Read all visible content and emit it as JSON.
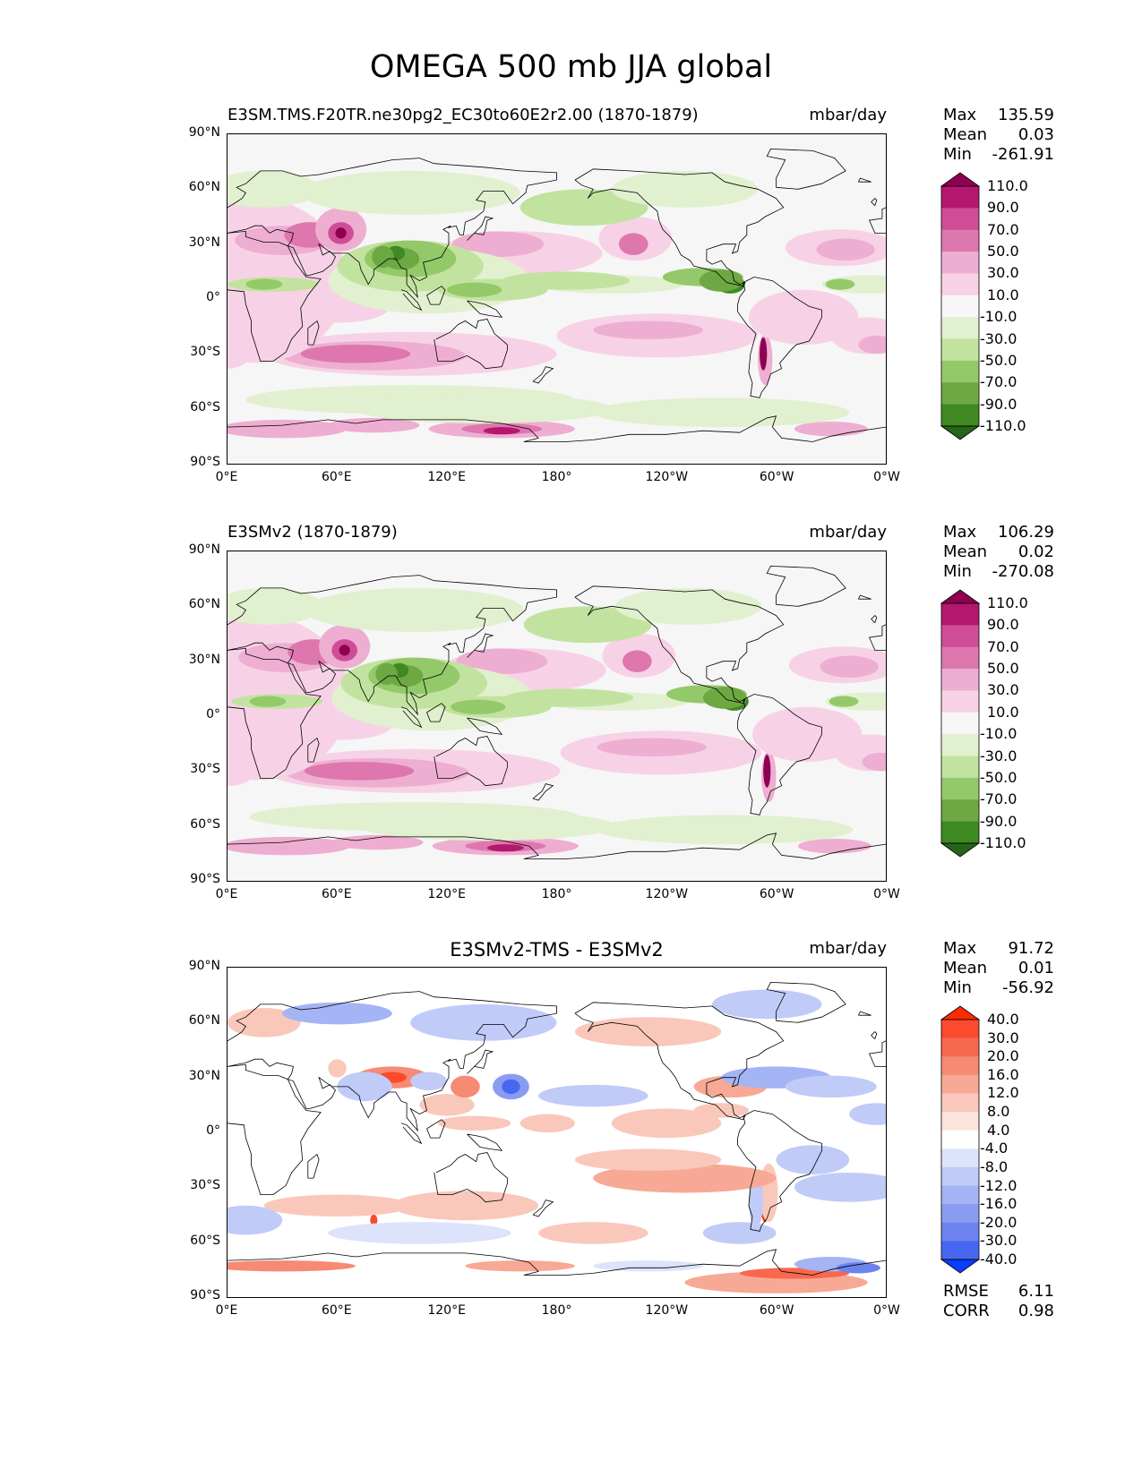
{
  "figure_title": "OMEGA 500 mb JJA global",
  "lon_ticks": [
    "0°E",
    "60°E",
    "120°E",
    "180°",
    "120°W",
    "60°W",
    "0°W"
  ],
  "lat_ticks": [
    "90°N",
    "60°N",
    "30°N",
    "0°",
    "30°S",
    "60°S",
    "90°S"
  ],
  "chart_data": [
    {
      "type": "heatmap",
      "title": "E3SM.TMS.F20TR.ne30pg2_EC30to60E2r2.00 (1870-1879)",
      "units": "mbar/day",
      "stats": {
        "max_label": "Max",
        "max": "135.59",
        "mean_label": "Mean",
        "mean": "0.03",
        "min_label": "Min",
        "min": "-261.91"
      },
      "xlim": [
        0,
        360
      ],
      "ylim": [
        -90,
        90
      ],
      "colorbar_levels": [
        "110.0",
        "90.0",
        "70.0",
        "50.0",
        "30.0",
        "10.0",
        "-10.0",
        "-30.0",
        "-50.0",
        "-70.0",
        "-90.0",
        "-110.0"
      ],
      "colors": [
        "#8e0152",
        "#b5176f",
        "#cf4d97",
        "#de77ae",
        "#eeaed2",
        "#f7d2e6",
        "#f7f7f7",
        "#e1f0cf",
        "#c2e39f",
        "#94c969",
        "#6da843",
        "#3f8923",
        "#276419"
      ]
    },
    {
      "type": "heatmap",
      "title": "E3SMv2 (1870-1879)",
      "units": "mbar/day",
      "stats": {
        "max_label": "Max",
        "max": "106.29",
        "mean_label": "Mean",
        "mean": "0.02",
        "min_label": "Min",
        "min": "-270.08"
      },
      "xlim": [
        0,
        360
      ],
      "ylim": [
        -90,
        90
      ],
      "colorbar_levels": [
        "110.0",
        "90.0",
        "70.0",
        "50.0",
        "30.0",
        "10.0",
        "-10.0",
        "-30.0",
        "-50.0",
        "-70.0",
        "-90.0",
        "-110.0"
      ],
      "colors": [
        "#8e0152",
        "#b5176f",
        "#cf4d97",
        "#de77ae",
        "#eeaed2",
        "#f7d2e6",
        "#f7f7f7",
        "#e1f0cf",
        "#c2e39f",
        "#94c969",
        "#6da843",
        "#3f8923",
        "#276419"
      ]
    },
    {
      "type": "heatmap",
      "title": "E3SMv2-TMS - E3SMv2",
      "units": "mbar/day",
      "stats": {
        "max_label": "Max",
        "max": "91.72",
        "mean_label": "Mean",
        "mean": "0.01",
        "min_label": "Min",
        "min": "-56.92"
      },
      "extra_stats": {
        "rmse_label": "RMSE",
        "rmse": "6.11",
        "corr_label": "CORR",
        "corr": "0.98"
      },
      "xlim": [
        0,
        360
      ],
      "ylim": [
        -90,
        90
      ],
      "colorbar_levels": [
        "40.0",
        "30.0",
        "20.0",
        "16.0",
        "12.0",
        "8.0",
        "4.0",
        "-4.0",
        "-8.0",
        "-12.0",
        "-16.0",
        "-20.0",
        "-30.0",
        "-40.0"
      ],
      "colors": [
        "#ff2a00",
        "#fb4a2c",
        "#f7684f",
        "#f78a73",
        "#f7a995",
        "#f9c8ba",
        "#fce4dc",
        "#ffffff",
        "#dde3fb",
        "#c1cbf7",
        "#a5b4f4",
        "#8a9cf1",
        "#6c83ef",
        "#4867f1",
        "#0a3dff"
      ]
    }
  ]
}
